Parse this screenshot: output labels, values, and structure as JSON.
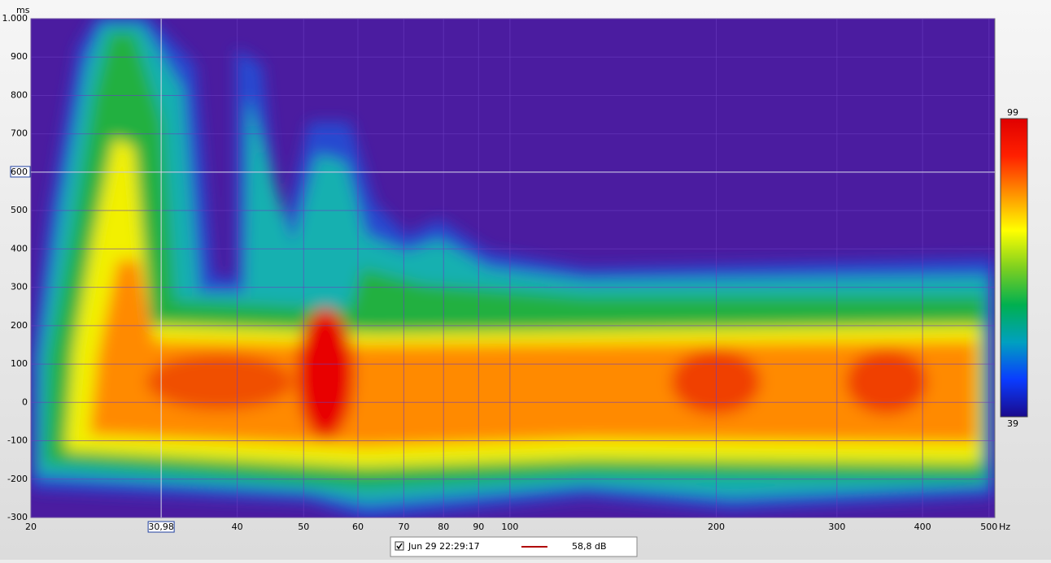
{
  "chart_data": {
    "type": "heatmap",
    "y_label": "ms",
    "x_label": "Hz",
    "xscale": "log",
    "xlim": [
      20,
      510
    ],
    "ylim": [
      -300,
      1000
    ],
    "xticks": [
      20,
      40,
      50,
      60,
      70,
      80,
      90,
      100,
      200,
      300,
      400,
      500
    ],
    "yticks": [
      {
        "value": 1000,
        "label": "1.000"
      },
      900,
      800,
      700,
      600,
      500,
      400,
      300,
      200,
      100,
      0,
      -100,
      -200,
      -300
    ],
    "grid": true,
    "background": "#4b1ca0",
    "cursor": {
      "x": {
        "value": 30.98,
        "label": "30,98"
      },
      "y": 600
    },
    "colorbar": {
      "lim": [
        39,
        99
      ],
      "colors": [
        "#1a0a8c",
        "#0a3cff",
        "#00a0c0",
        "#00b050",
        "#7ed020",
        "#ffff00",
        "#ff9000",
        "#ff2000",
        "#e00000"
      ]
    },
    "series": [
      {
        "name": "Jun 29 22:29:17",
        "color": "#b00000",
        "value": 58.8,
        "value_label": "58,8 dB"
      }
    ]
  }
}
